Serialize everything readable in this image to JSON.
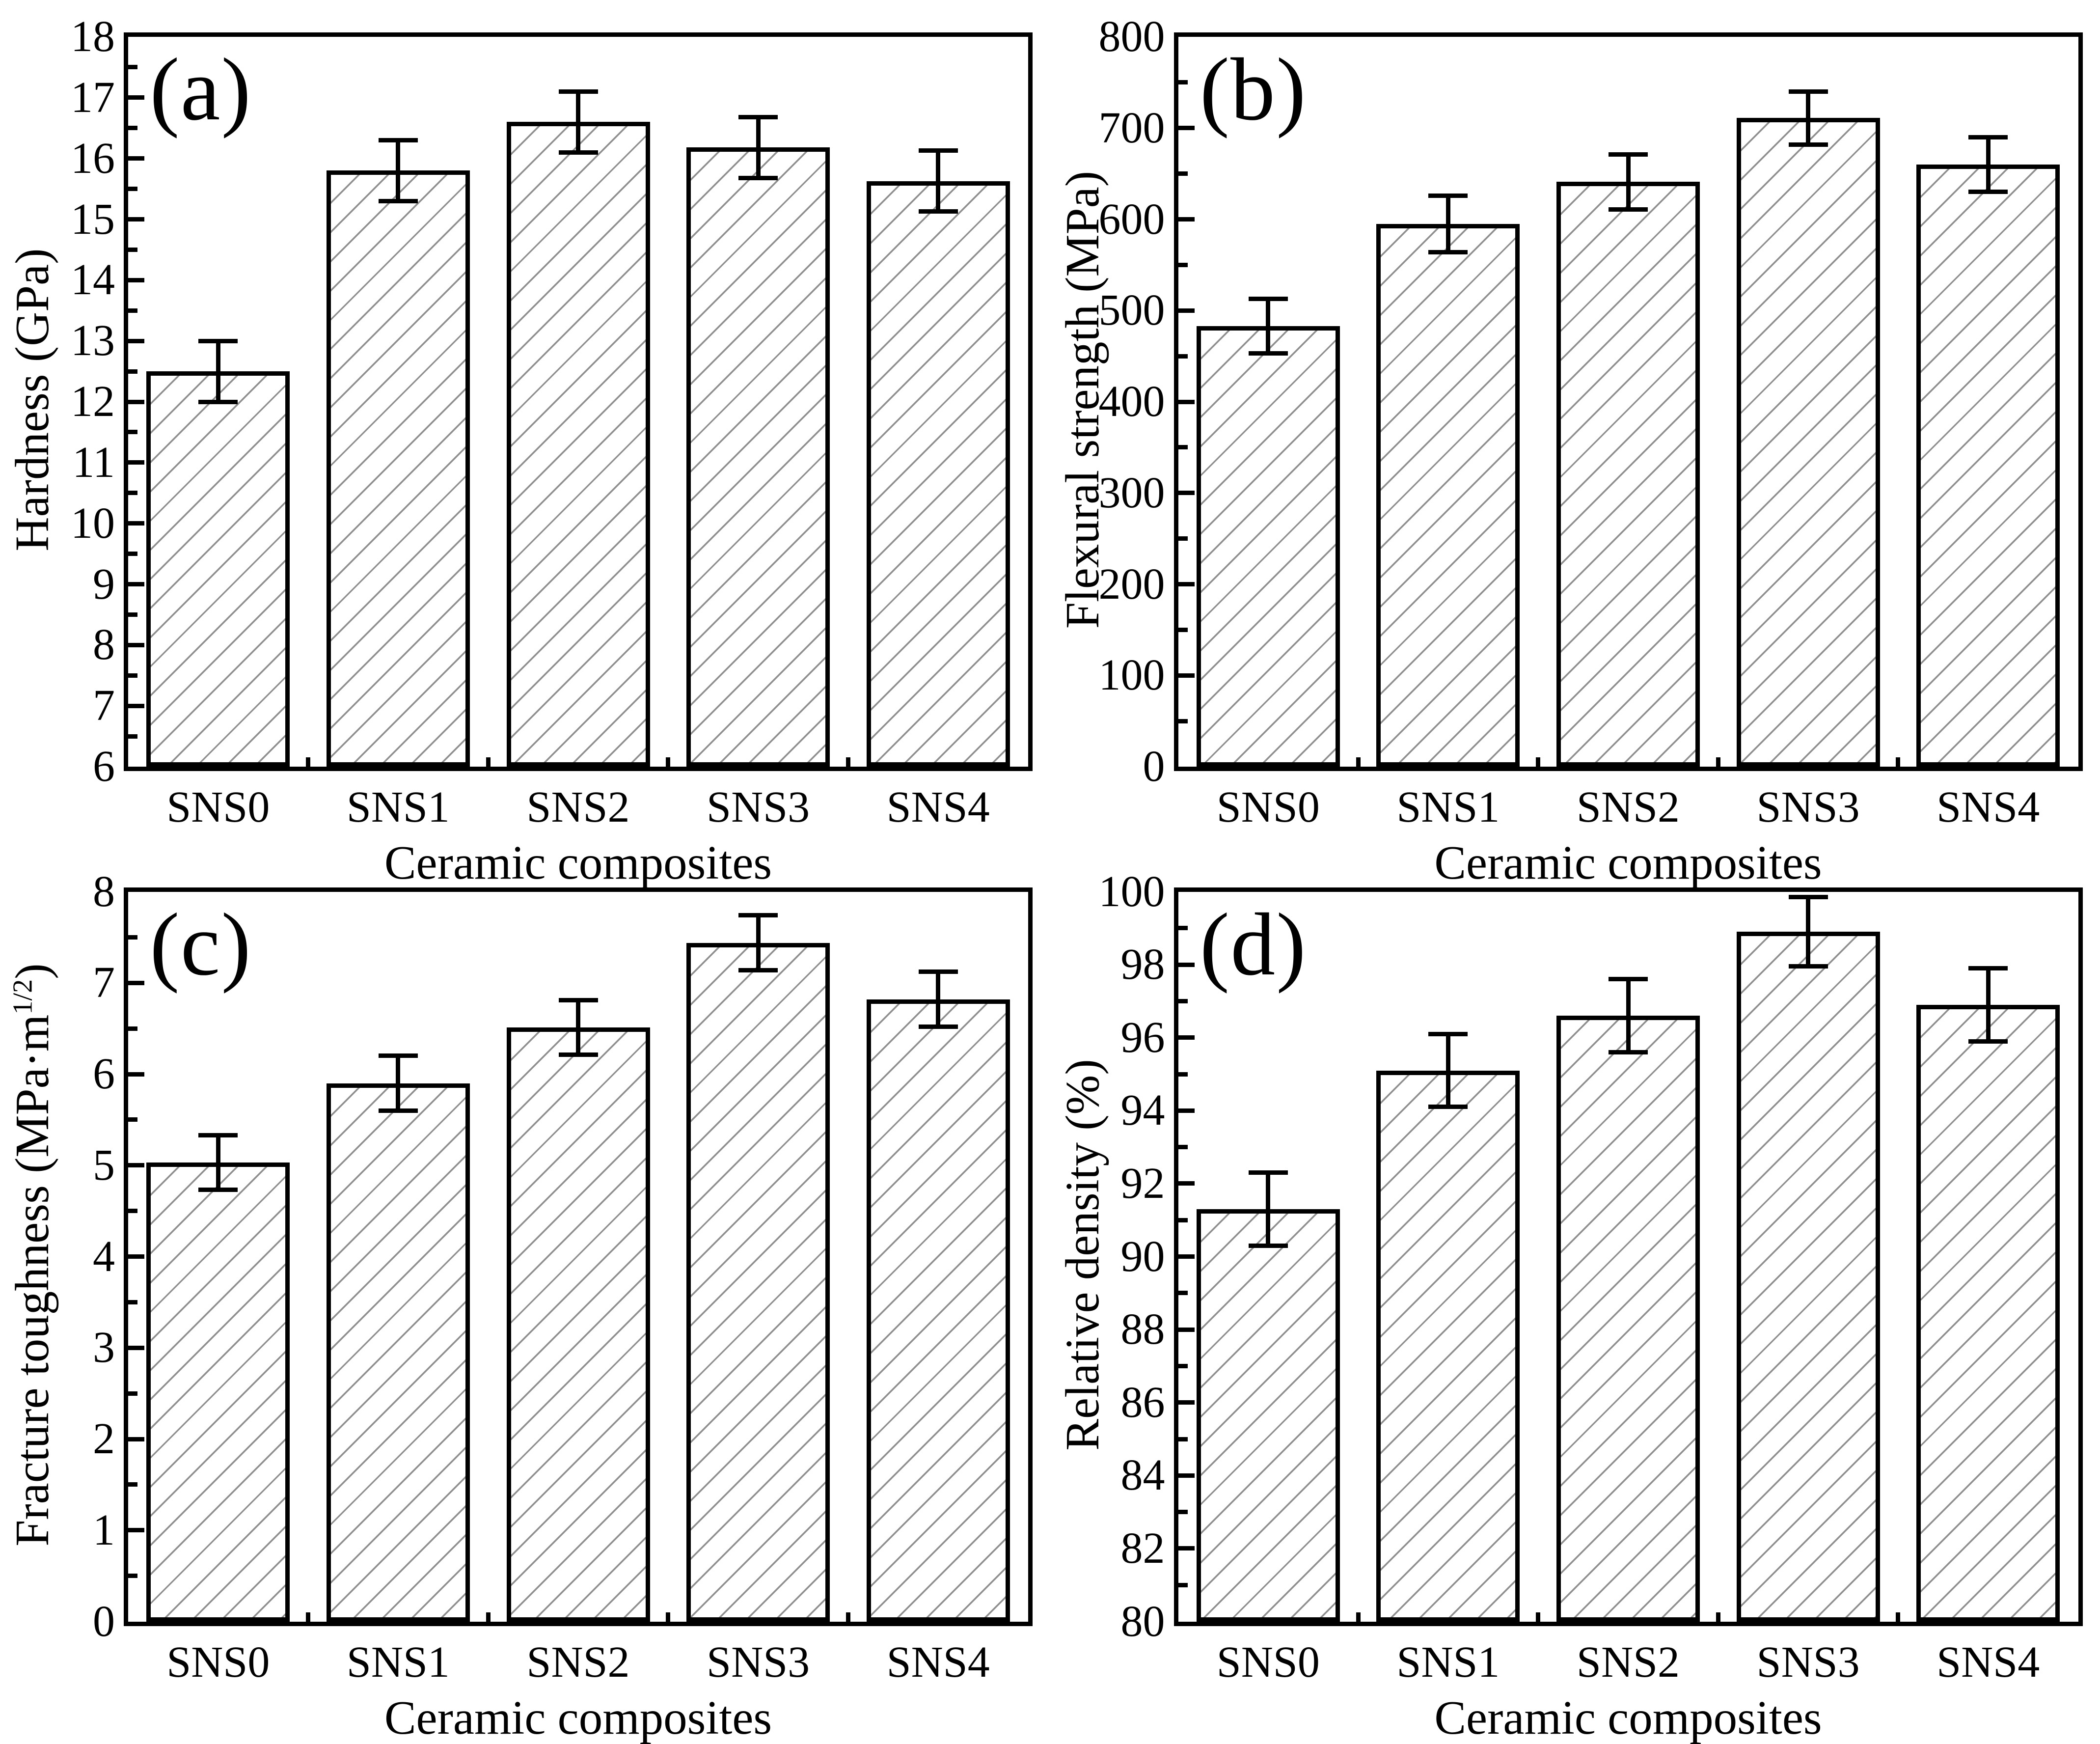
{
  "figure": {
    "background": "#ffffff",
    "ink_color": "#000000",
    "hatch_color": "#8f8f8f",
    "bar_fill": "#ffffff",
    "bar_pattern": "diagonal-hatch",
    "legend": "none",
    "grid": false
  },
  "chart_data": [
    {
      "panel_label": "(a)",
      "type": "bar",
      "title": "",
      "xlabel": "Ceramic composites",
      "ylabel": "Hardness (GPa)",
      "ylabel_sup": "",
      "ylabel_post": "",
      "categories": [
        "SNS0",
        "SNS1",
        "SNS2",
        "SNS3",
        "SNS4"
      ],
      "values": [
        12.5,
        15.8,
        16.6,
        16.18,
        15.63
      ],
      "errors": [
        0.5,
        0.5,
        0.5,
        0.5,
        0.5
      ],
      "ylim": [
        6,
        18
      ],
      "ytick_major": 1,
      "ytick_minor": 0.5
    },
    {
      "panel_label": "(b)",
      "type": "bar",
      "title": "",
      "xlabel": "Ceramic composites",
      "ylabel": "Flexural strength (MPa)",
      "ylabel_sup": "",
      "ylabel_post": "",
      "categories": [
        "SNS0",
        "SNS1",
        "SNS2",
        "SNS3",
        "SNS4"
      ],
      "values": [
        483,
        595,
        641,
        711,
        660
      ],
      "errors": [
        30,
        31,
        30,
        29,
        30
      ],
      "ylim": [
        0,
        800
      ],
      "ytick_major": 100,
      "ytick_minor": 50
    },
    {
      "panel_label": "(c)",
      "type": "bar",
      "title": "",
      "xlabel": "Ceramic composites",
      "ylabel": "Fracture toughness (MPa·m",
      "ylabel_sup": "1/2",
      "ylabel_post": ")",
      "categories": [
        "SNS0",
        "SNS1",
        "SNS2",
        "SNS3",
        "SNS4"
      ],
      "values": [
        5.03,
        5.9,
        6.51,
        7.44,
        6.82
      ],
      "errors": [
        0.3,
        0.3,
        0.3,
        0.3,
        0.3
      ],
      "ylim": [
        0,
        8
      ],
      "ytick_major": 1,
      "ytick_minor": 0.5
    },
    {
      "panel_label": "(d)",
      "type": "bar",
      "title": "",
      "xlabel": "Ceramic composites",
      "ylabel": "Relative density (%)",
      "ylabel_sup": "",
      "ylabel_post": "",
      "categories": [
        "SNS0",
        "SNS1",
        "SNS2",
        "SNS3",
        "SNS4"
      ],
      "values": [
        91.3,
        95.1,
        96.6,
        98.9,
        96.9
      ],
      "errors": [
        1.0,
        1.0,
        1.0,
        0.95,
        1.0
      ],
      "ylim": [
        80,
        100
      ],
      "ytick_major": 2,
      "ytick_minor": 1
    }
  ]
}
